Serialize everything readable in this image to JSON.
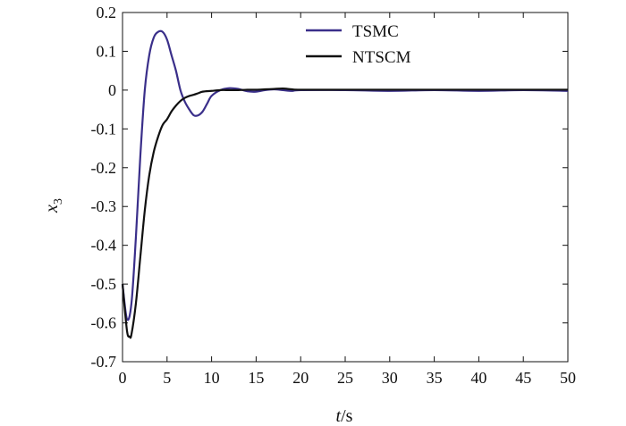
{
  "chart_data": {
    "type": "line",
    "title": "",
    "xlabel": "t/s",
    "ylabel": "x3",
    "xlabel_parts": {
      "var": "t",
      "unit": "/s"
    },
    "ylabel_parts": {
      "var": "x",
      "sub": "3"
    },
    "xlim": [
      0,
      50
    ],
    "ylim": [
      -0.7,
      0.2
    ],
    "xticks": [
      0,
      5,
      10,
      15,
      20,
      25,
      30,
      35,
      40,
      45,
      50
    ],
    "xtick_labels": [
      "0",
      "5",
      "10",
      "15",
      "20",
      "25",
      "30",
      "35",
      "40",
      "45",
      "50"
    ],
    "yticks": [
      0.2,
      0.1,
      0,
      -0.1,
      -0.2,
      -0.3,
      -0.4,
      -0.5,
      -0.6,
      -0.7
    ],
    "ytick_labels": [
      "0.2",
      "0.1",
      "0",
      "-0.1",
      "-0.2",
      "-0.3",
      "-0.4",
      "-0.5",
      "-0.6",
      "-0.7"
    ],
    "grid": false,
    "legend_position": "top-right",
    "series": [
      {
        "name": "TSMC",
        "color": "#3a2f8a",
        "x": [
          0,
          0.5,
          1,
          1.5,
          2,
          2.5,
          3,
          3.5,
          4,
          4.5,
          5,
          5.5,
          6,
          6.5,
          7,
          7.5,
          8,
          8.5,
          9,
          9.5,
          10,
          11,
          12,
          13,
          14,
          15,
          16,
          17,
          18,
          19,
          20,
          25,
          30,
          35,
          40,
          45,
          50
        ],
        "y": [
          -0.5,
          -0.59,
          -0.55,
          -0.38,
          -0.17,
          0.0,
          0.09,
          0.135,
          0.15,
          0.15,
          0.13,
          0.09,
          0.05,
          0.0,
          -0.03,
          -0.05,
          -0.065,
          -0.065,
          -0.055,
          -0.035,
          -0.015,
          0.0,
          0.005,
          0.003,
          -0.003,
          -0.004,
          0.0,
          0.002,
          0.0,
          -0.002,
          0.0,
          0.0,
          -0.002,
          0.0,
          -0.002,
          0.0,
          -0.002
        ]
      },
      {
        "name": "NTSCM",
        "color": "#111111",
        "x": [
          0,
          0.5,
          0.8,
          1,
          1.5,
          2,
          2.5,
          3,
          3.5,
          4,
          4.5,
          5,
          5.5,
          6,
          6.5,
          7,
          7.5,
          8,
          8.5,
          9,
          10,
          11,
          12,
          13,
          14,
          15,
          16,
          17,
          18,
          19,
          20,
          25,
          30,
          35,
          40,
          45,
          50
        ],
        "y": [
          -0.5,
          -0.62,
          -0.635,
          -0.63,
          -0.55,
          -0.43,
          -0.31,
          -0.22,
          -0.16,
          -0.12,
          -0.09,
          -0.075,
          -0.055,
          -0.04,
          -0.028,
          -0.02,
          -0.015,
          -0.012,
          -0.008,
          -0.004,
          -0.002,
          0.0,
          0.0,
          0.0,
          0.001,
          0.001,
          0.002,
          0.003,
          0.004,
          0.002,
          0.001,
          0.001,
          0.001,
          0.001,
          0.001,
          0.001,
          0.001
        ]
      }
    ]
  }
}
